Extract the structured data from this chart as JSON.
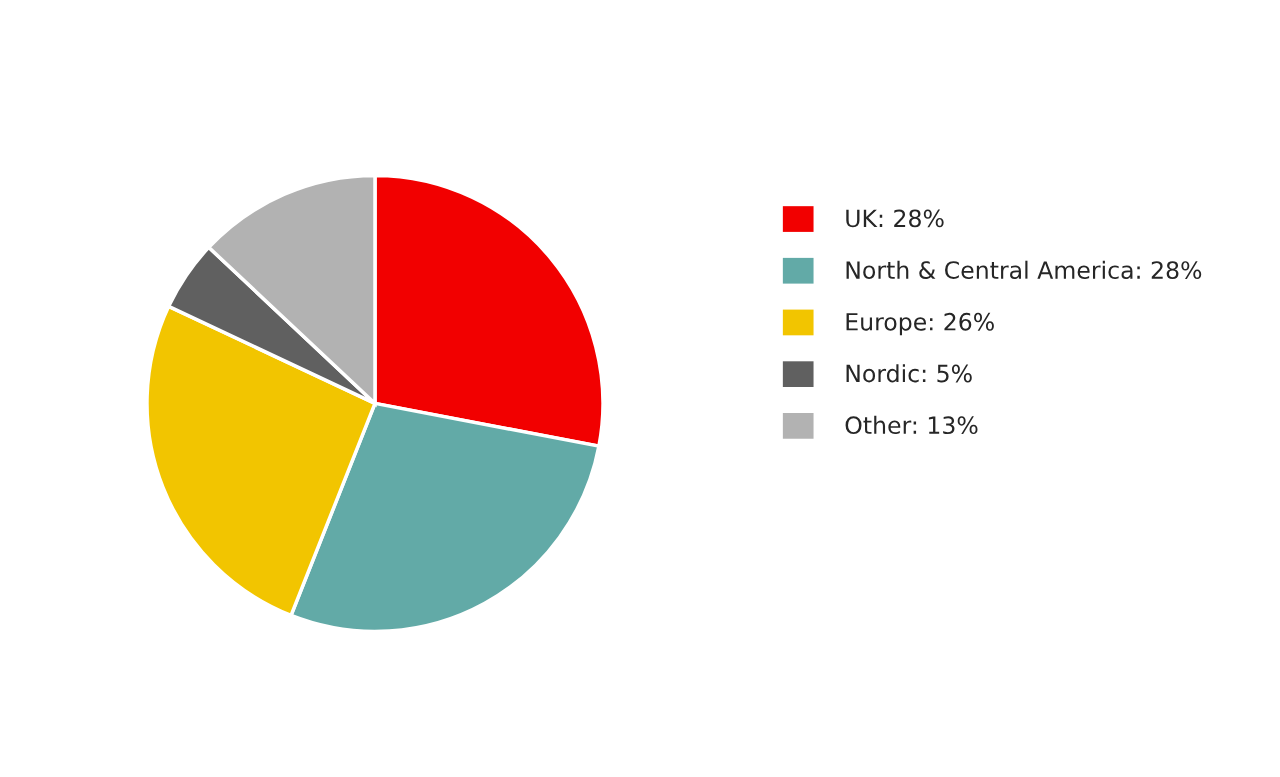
{
  "chart_data": {
    "type": "pie",
    "categories": [
      "UK: 28%",
      "North & Central America: 28%",
      "Europe: 26%",
      "Nordic: 5%",
      "Other: 13%"
    ],
    "values": [
      28,
      28,
      26,
      5,
      13
    ],
    "colors": [
      "#f20000",
      "#62aaa7",
      "#f2c500",
      "#606060",
      "#b2b2b2"
    ],
    "legend": "right"
  }
}
